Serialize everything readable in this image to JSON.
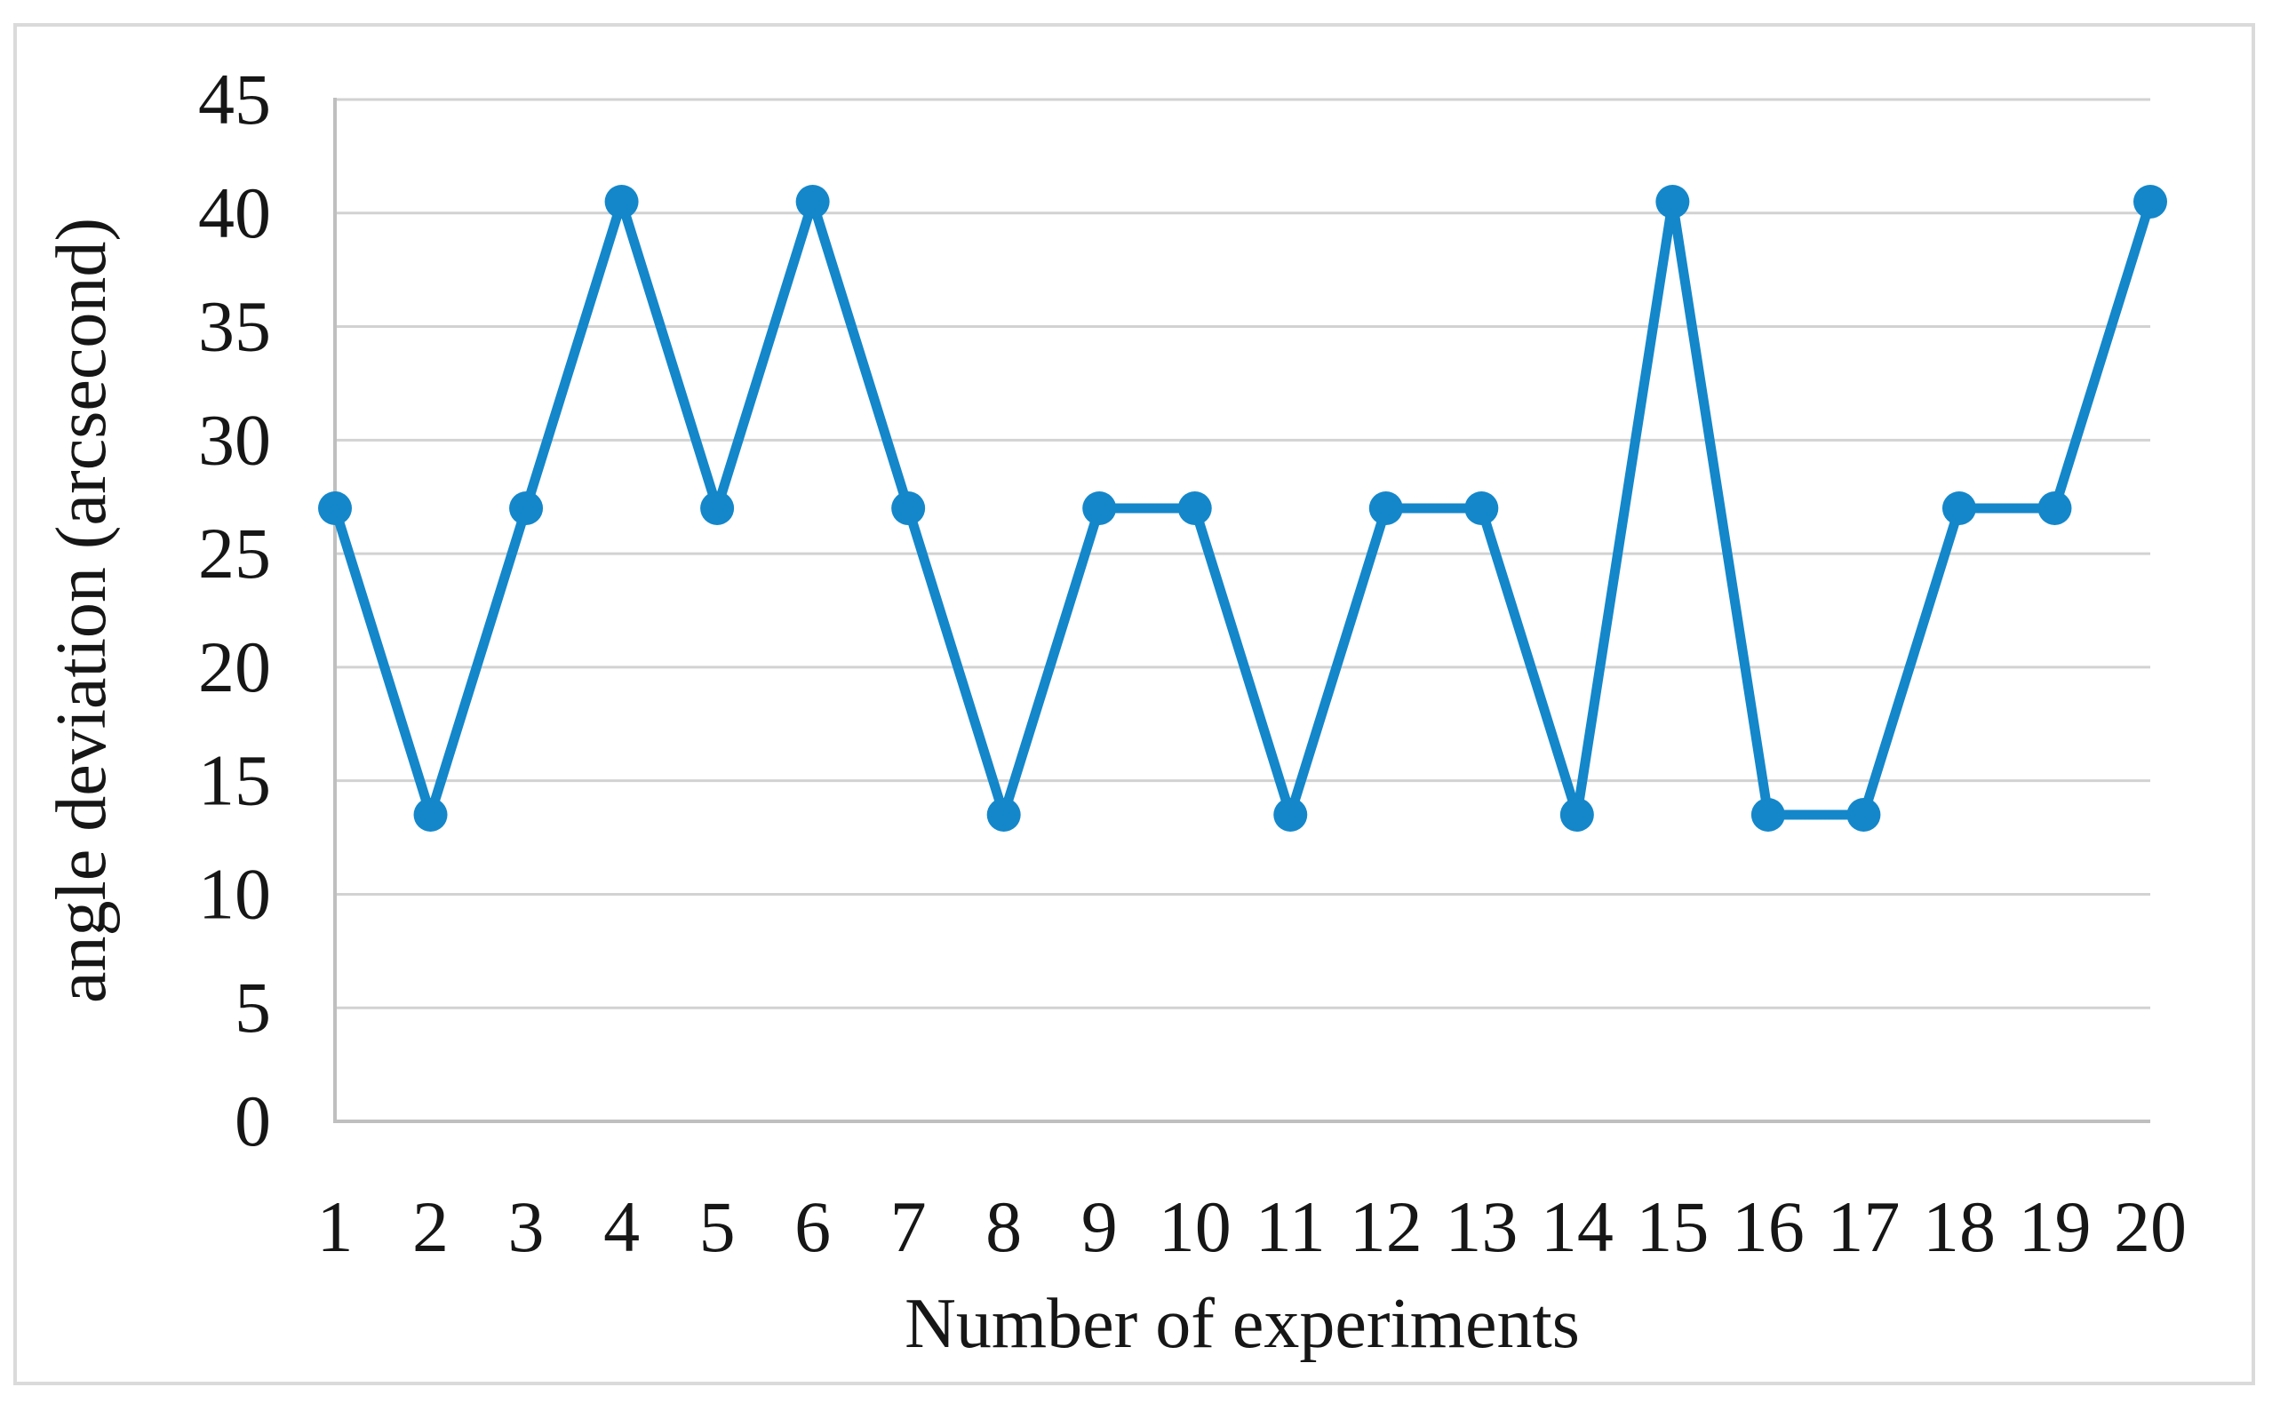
{
  "chart_data": {
    "type": "line",
    "title": "",
    "xlabel": "Number of experiments",
    "ylabel": "angle deviation (arcsecond)",
    "categories": [
      1,
      2,
      3,
      4,
      5,
      6,
      7,
      8,
      9,
      10,
      11,
      12,
      13,
      14,
      15,
      16,
      17,
      18,
      19,
      20
    ],
    "values": [
      27,
      13.5,
      27,
      40.5,
      27,
      40.5,
      27,
      13.5,
      27,
      27,
      13.5,
      27,
      27,
      13.5,
      40.5,
      13.5,
      13.5,
      27,
      27,
      40.5
    ],
    "series_name": "angle deviation",
    "yticks": [
      0,
      5,
      10,
      15,
      20,
      25,
      30,
      35,
      40,
      45
    ],
    "ylim": [
      0,
      45
    ],
    "grid": "horizontal",
    "legend_position": "none",
    "marker": "circle",
    "colors": {
      "series": "#1487CA",
      "gridline": "#D2D2D2",
      "axis": "#BFBFBF",
      "frame": "#DADADA",
      "text": "#161616",
      "background": "#FFFFFF"
    }
  }
}
